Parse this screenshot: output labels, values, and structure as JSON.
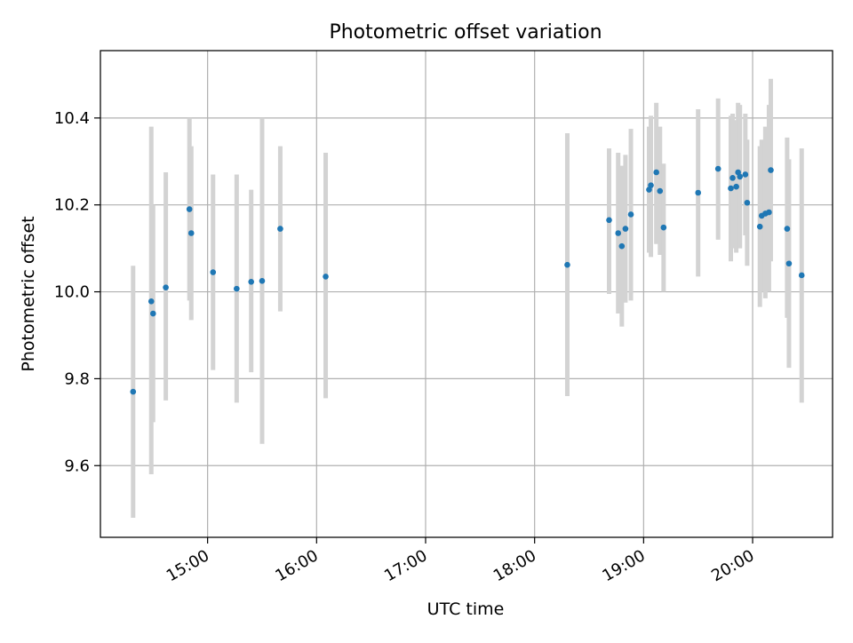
{
  "chart_data": {
    "type": "scatter",
    "title": "Photometric offset variation",
    "xlabel": "UTC time",
    "ylabel": "Photometric offset",
    "x_axis_kind": "time",
    "xlim": [
      "14:01",
      "20:44"
    ],
    "ylim": [
      9.435,
      10.555
    ],
    "x_ticks": [
      "15:00",
      "16:00",
      "17:00",
      "18:00",
      "19:00",
      "20:00"
    ],
    "y_ticks": [
      9.6,
      9.8,
      10.0,
      10.2,
      10.4
    ],
    "y_tick_labels": [
      "9.6",
      "9.8",
      "10.0",
      "10.2",
      "10.4"
    ],
    "grid": true,
    "legend": "none",
    "colors": {
      "points": "#1f77b4",
      "errorbars": "#d3d3d3",
      "grid": "#b0b0b0"
    },
    "points": [
      {
        "x": "14:19",
        "y": 9.77,
        "err_low": 9.48,
        "err_high": 10.06
      },
      {
        "x": "14:29",
        "y": 9.978,
        "err_low": 9.58,
        "err_high": 10.38
      },
      {
        "x": "14:30",
        "y": 9.95,
        "err_low": 9.7,
        "err_high": 10.2
      },
      {
        "x": "14:37",
        "y": 10.01,
        "err_low": 9.75,
        "err_high": 10.275
      },
      {
        "x": "14:50",
        "y": 10.19,
        "err_low": 9.98,
        "err_high": 10.4
      },
      {
        "x": "14:51",
        "y": 10.135,
        "err_low": 9.935,
        "err_high": 10.335
      },
      {
        "x": "15:03",
        "y": 10.045,
        "err_low": 9.82,
        "err_high": 10.27
      },
      {
        "x": "15:16",
        "y": 10.007,
        "err_low": 9.745,
        "err_high": 10.27
      },
      {
        "x": "15:24",
        "y": 10.023,
        "err_low": 9.815,
        "err_high": 10.235
      },
      {
        "x": "15:30",
        "y": 10.025,
        "err_low": 9.65,
        "err_high": 10.4
      },
      {
        "x": "15:40",
        "y": 10.145,
        "err_low": 9.955,
        "err_high": 10.335
      },
      {
        "x": "16:05",
        "y": 10.035,
        "err_low": 9.755,
        "err_high": 10.32
      },
      {
        "x": "18:18",
        "y": 10.062,
        "err_low": 9.76,
        "err_high": 10.365
      },
      {
        "x": "18:41",
        "y": 10.165,
        "err_low": 9.995,
        "err_high": 10.33
      },
      {
        "x": "18:46",
        "y": 10.135,
        "err_low": 9.95,
        "err_high": 10.32
      },
      {
        "x": "18:48",
        "y": 10.105,
        "err_low": 9.92,
        "err_high": 10.29
      },
      {
        "x": "18:50",
        "y": 10.145,
        "err_low": 9.975,
        "err_high": 10.315
      },
      {
        "x": "18:53",
        "y": 10.178,
        "err_low": 9.98,
        "err_high": 10.375
      },
      {
        "x": "19:03",
        "y": 10.235,
        "err_low": 10.09,
        "err_high": 10.38
      },
      {
        "x": "19:04",
        "y": 10.245,
        "err_low": 10.08,
        "err_high": 10.405
      },
      {
        "x": "19:07",
        "y": 10.275,
        "err_low": 10.11,
        "err_high": 10.435
      },
      {
        "x": "19:09",
        "y": 10.232,
        "err_low": 10.085,
        "err_high": 10.38
      },
      {
        "x": "19:11",
        "y": 10.148,
        "err_low": 10.0,
        "err_high": 10.295
      },
      {
        "x": "19:30",
        "y": 10.228,
        "err_low": 10.035,
        "err_high": 10.42
      },
      {
        "x": "19:41",
        "y": 10.283,
        "err_low": 10.12,
        "err_high": 10.445
      },
      {
        "x": "19:48",
        "y": 10.238,
        "err_low": 10.07,
        "err_high": 10.405
      },
      {
        "x": "19:49",
        "y": 10.262,
        "err_low": 10.1,
        "err_high": 10.41
      },
      {
        "x": "19:51",
        "y": 10.242,
        "err_low": 10.09,
        "err_high": 10.395
      },
      {
        "x": "19:52",
        "y": 10.275,
        "err_low": 10.115,
        "err_high": 10.435
      },
      {
        "x": "19:53",
        "y": 10.265,
        "err_low": 10.1,
        "err_high": 10.43
      },
      {
        "x": "19:56",
        "y": 10.27,
        "err_low": 10.13,
        "err_high": 10.41
      },
      {
        "x": "19:57",
        "y": 10.205,
        "err_low": 10.06,
        "err_high": 10.35
      },
      {
        "x": "20:04",
        "y": 10.15,
        "err_low": 9.965,
        "err_high": 10.335
      },
      {
        "x": "20:05",
        "y": 10.175,
        "err_low": 10.0,
        "err_high": 10.35
      },
      {
        "x": "20:07",
        "y": 10.18,
        "err_low": 9.985,
        "err_high": 10.38
      },
      {
        "x": "20:09",
        "y": 10.183,
        "err_low": 10.0,
        "err_high": 10.43
      },
      {
        "x": "20:10",
        "y": 10.28,
        "err_low": 10.07,
        "err_high": 10.49
      },
      {
        "x": "20:19",
        "y": 10.145,
        "err_low": 9.94,
        "err_high": 10.355
      },
      {
        "x": "20:20",
        "y": 10.065,
        "err_low": 9.825,
        "err_high": 10.305
      },
      {
        "x": "20:27",
        "y": 10.038,
        "err_low": 9.745,
        "err_high": 10.33
      }
    ]
  }
}
